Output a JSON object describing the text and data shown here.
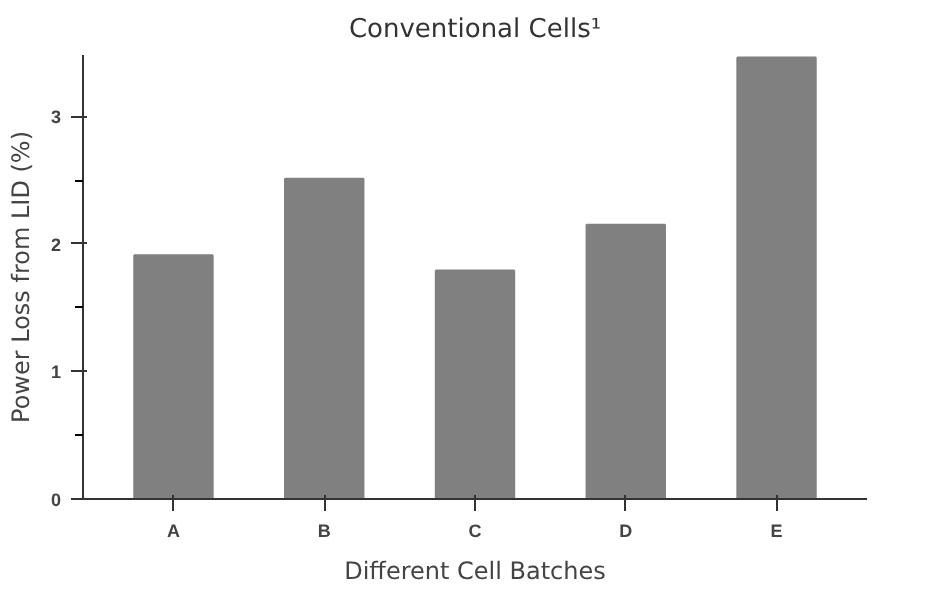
{
  "chart_data": {
    "type": "bar",
    "title": "Conventional Cells¹",
    "xlabel": "Different Cell Batches",
    "ylabel": "Power Loss from LID (%)",
    "categories": [
      "A",
      "B",
      "C",
      "D",
      "E"
    ],
    "values": [
      1.91,
      2.51,
      1.79,
      2.15,
      3.46
    ],
    "color": "#808080",
    "ylim": [
      0,
      3.48
    ],
    "yticks": [
      0,
      1,
      2,
      3
    ],
    "grid": false
  }
}
